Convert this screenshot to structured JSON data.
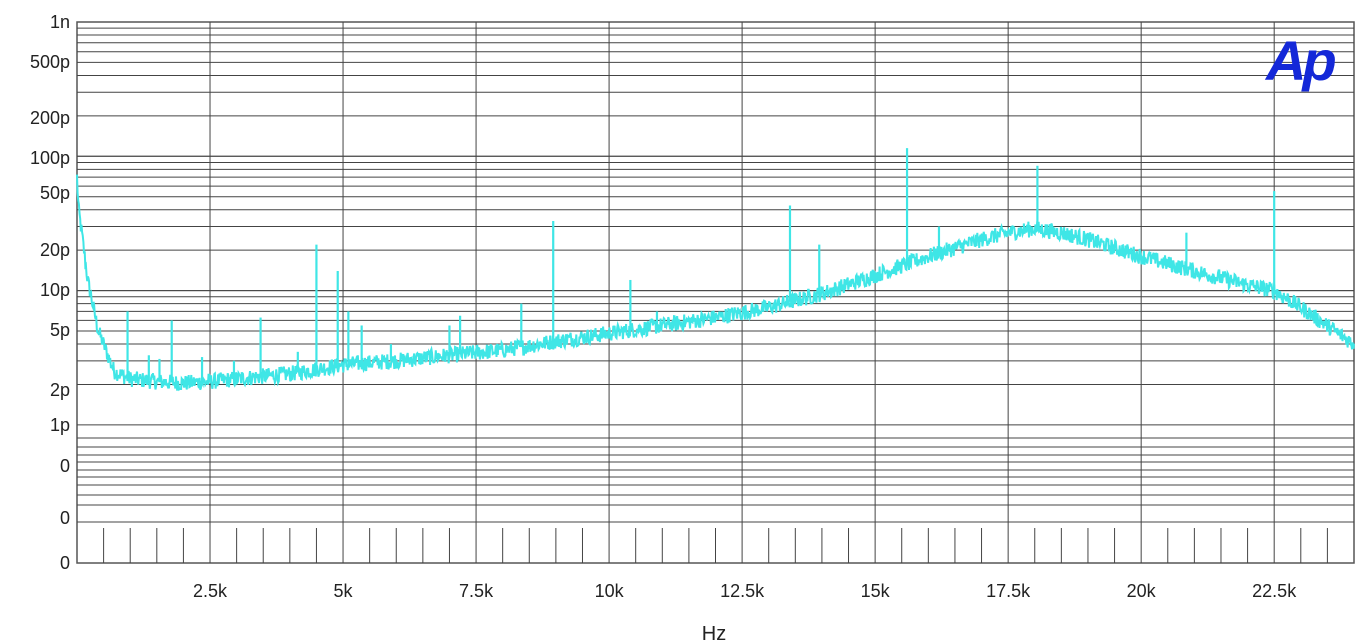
{
  "chart_data": {
    "type": "line",
    "title": "",
    "xlabel": "Hz",
    "ylabel": "",
    "xlim": [
      0,
      24000
    ],
    "y_scale": "log",
    "grid": true,
    "line_color": "#3fe6e6",
    "logo_text": "Ap",
    "logo_color": "#1428d8",
    "x_ticks": [
      {
        "value": 2500,
        "label": "2.5k"
      },
      {
        "value": 5000,
        "label": "5k"
      },
      {
        "value": 7500,
        "label": "7.5k"
      },
      {
        "value": 10000,
        "label": "10k"
      },
      {
        "value": 12500,
        "label": "12.5k"
      },
      {
        "value": 15000,
        "label": "15k"
      },
      {
        "value": 17500,
        "label": "17.5k"
      },
      {
        "value": 20000,
        "label": "20k"
      },
      {
        "value": 22500,
        "label": "22.5k"
      }
    ],
    "y_tick_labels": [
      "1n",
      "500p",
      "200p",
      "100p",
      "50p",
      "20p",
      "10p",
      "5p",
      "2p",
      "1p",
      "0",
      "0",
      "0"
    ],
    "series": [
      {
        "values_note": "",
        "x": [
          0,
          30,
          100,
          200,
          400,
          700,
          1000,
          1500,
          2000,
          2500,
          3000,
          3500,
          4000,
          4500,
          5000,
          6000,
          7000,
          8000,
          9000,
          10000,
          11000,
          12000,
          13000,
          14000,
          15000,
          16000,
          17000,
          17500,
          18000,
          18500,
          19000,
          20000,
          21000,
          22000,
          22500,
          23000,
          24000
        ],
        "y": [
          7e-11,
          4e-11,
          2.5e-11,
          1.2e-11,
          5e-12,
          2.5e-12,
          2.2e-12,
          2.1e-12,
          2.05e-12,
          2.1e-12,
          2.2e-12,
          2.3e-12,
          2.4e-12,
          2.6e-12,
          2.8e-12,
          3e-12,
          3.3e-12,
          3.6e-12,
          4.2e-12,
          4.8e-12,
          5.5e-12,
          6.3e-12,
          7.5e-12,
          9.5e-12,
          1.3e-11,
          1.8e-11,
          2.4e-11,
          2.7e-11,
          2.9e-11,
          2.7e-11,
          2.4e-11,
          1.8e-11,
          1.4e-11,
          1.1e-11,
          1e-11,
          7.5e-12,
          4e-12
        ]
      }
    ],
    "spikes": [
      {
        "x": 950,
        "y": 7e-12
      },
      {
        "x": 1350,
        "y": 3.3e-12
      },
      {
        "x": 1550,
        "y": 3.1e-12
      },
      {
        "x": 1780,
        "y": 6e-12
      },
      {
        "x": 2350,
        "y": 3.2e-12
      },
      {
        "x": 2950,
        "y": 3e-12
      },
      {
        "x": 3450,
        "y": 6.3e-12
      },
      {
        "x": 4150,
        "y": 3.5e-12
      },
      {
        "x": 4500,
        "y": 2.2e-11
      },
      {
        "x": 4900,
        "y": 1.4e-11
      },
      {
        "x": 5100,
        "y": 7e-12
      },
      {
        "x": 5350,
        "y": 5.5e-12
      },
      {
        "x": 5900,
        "y": 4e-12
      },
      {
        "x": 7000,
        "y": 5.5e-12
      },
      {
        "x": 7200,
        "y": 6.5e-12
      },
      {
        "x": 8350,
        "y": 8e-12
      },
      {
        "x": 8950,
        "y": 3.3e-11
      },
      {
        "x": 10400,
        "y": 1.2e-11
      },
      {
        "x": 10900,
        "y": 7e-12
      },
      {
        "x": 13400,
        "y": 4.3e-11
      },
      {
        "x": 13950,
        "y": 2.2e-11
      },
      {
        "x": 15600,
        "y": 1.15e-10
      },
      {
        "x": 16200,
        "y": 3e-11
      },
      {
        "x": 18050,
        "y": 8.5e-11
      },
      {
        "x": 20850,
        "y": 2.7e-11
      },
      {
        "x": 22500,
        "y": 5.5e-11
      }
    ]
  }
}
